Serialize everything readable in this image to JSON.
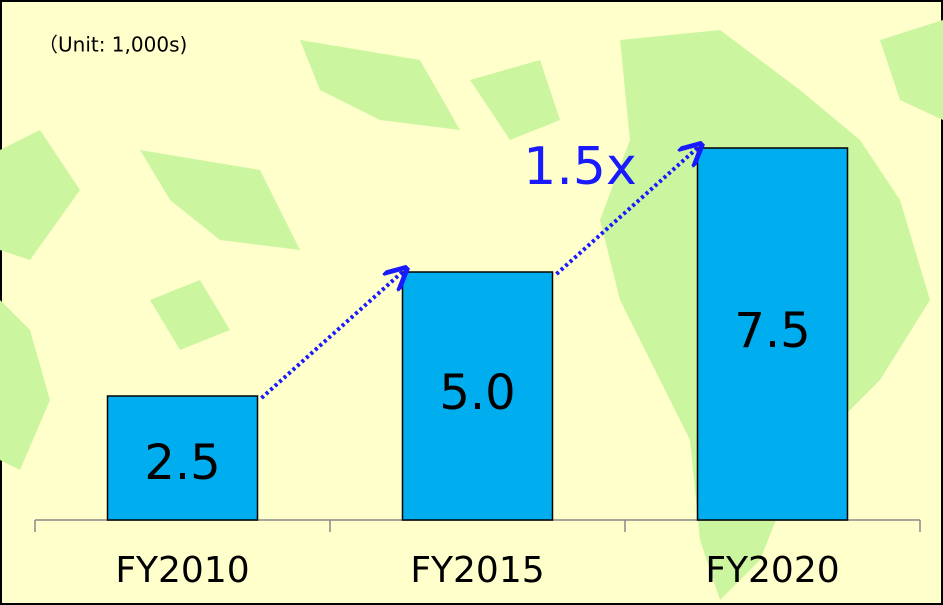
{
  "chart_data": {
    "type": "bar",
    "subtitle": "（Unit: 1,000s)",
    "annotation": "1.5x",
    "categories": [
      "FY2010",
      "FY2015",
      "FY2020"
    ],
    "values": [
      2.5,
      5.0,
      7.5
    ],
    "value_labels": [
      "2.5",
      "5.0",
      "7.5"
    ],
    "color": "#00aeef",
    "ylim": [
      0,
      10
    ]
  }
}
